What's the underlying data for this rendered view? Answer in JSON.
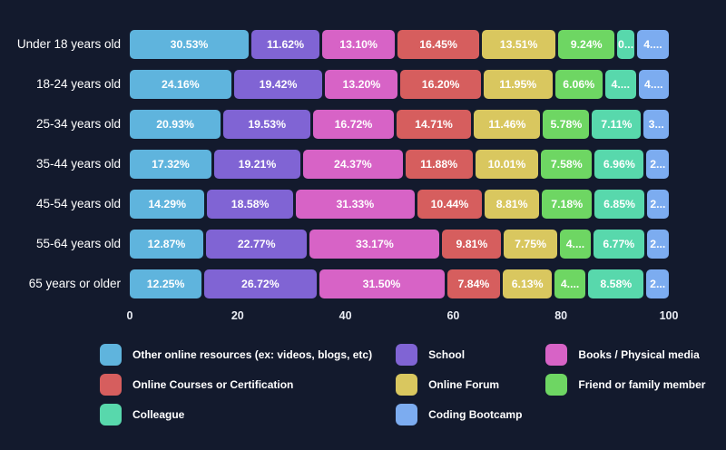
{
  "background": "#131A2D",
  "text_color": "#FFFFFF",
  "chart_data": {
    "type": "bar",
    "orientation": "horizontal",
    "stacked": true,
    "grid": false,
    "legend_position": "bottom",
    "xlim": [
      0,
      100
    ],
    "x_ticks": [
      0,
      20,
      40,
      60,
      80,
      100
    ],
    "categories": [
      "Under 18 years old",
      "18-24 years old",
      "25-34 years old",
      "35-44 years old",
      "45-54 years old",
      "55-64 years old",
      "65 years or older"
    ],
    "series": [
      {
        "name": "Other online resources (ex: videos, blogs, etc)",
        "color": "#5FB4DD",
        "values": [
          30.53,
          24.16,
          20.93,
          17.32,
          14.29,
          12.87,
          12.25
        ],
        "labels": [
          "30.53%",
          "24.16%",
          "20.93%",
          "17.32%",
          "14.29%",
          "12.87%",
          "12.25%"
        ]
      },
      {
        "name": "School",
        "color": "#8064D4",
        "values": [
          11.62,
          19.42,
          19.53,
          19.21,
          18.58,
          22.77,
          26.72
        ],
        "labels": [
          "11.62%",
          "19.42%",
          "19.53%",
          "19.21%",
          "18.58%",
          "22.77%",
          "26.72%"
        ]
      },
      {
        "name": "Books / Physical media",
        "color": "#D763C6",
        "values": [
          13.1,
          13.2,
          16.72,
          24.37,
          31.33,
          33.17,
          31.5
        ],
        "labels": [
          "13.10%",
          "13.20%",
          "16.72%",
          "24.37%",
          "31.33%",
          "33.17%",
          "31.50%"
        ]
      },
      {
        "name": "Online Courses or Certification",
        "color": "#D65E5E",
        "values": [
          16.45,
          16.2,
          14.71,
          11.88,
          10.44,
          9.81,
          7.84
        ],
        "labels": [
          "16.45%",
          "16.20%",
          "14.71%",
          "11.88%",
          "10.44%",
          "9.81%",
          "7.84%"
        ]
      },
      {
        "name": "Online Forum",
        "color": "#D9C75F",
        "values": [
          13.51,
          11.95,
          11.46,
          10.01,
          8.81,
          7.75,
          6.13
        ],
        "labels": [
          "13.51%",
          "11.95%",
          "11.46%",
          "10.01%",
          "8.81%",
          "7.75%",
          "6.13%"
        ]
      },
      {
        "name": "Friend or family member",
        "color": "#6ED663",
        "values": [
          9.24,
          6.06,
          5.78,
          7.58,
          7.18,
          4.46,
          4.51
        ],
        "labels": [
          "9.24%",
          "6.06%",
          "5.78%",
          "7.58%",
          "7.18%",
          "4....",
          "4...."
        ]
      },
      {
        "name": "Colleague",
        "color": "#58D8AC",
        "values": [
          0.6,
          4.55,
          7.11,
          6.96,
          6.85,
          6.77,
          8.58
        ],
        "labels": [
          "0...",
          "4....",
          "7.11%",
          "6.96%",
          "6.85%",
          "6.77%",
          "8.58%"
        ]
      },
      {
        "name": "Coding Bootcamp",
        "color": "#7CACF0",
        "values": [
          4.95,
          4.46,
          3.76,
          2.67,
          2.52,
          2.4,
          2.47
        ],
        "labels": [
          "4....",
          "4....",
          "3...",
          "2...",
          "2...",
          "2...",
          "2..."
        ]
      }
    ]
  }
}
